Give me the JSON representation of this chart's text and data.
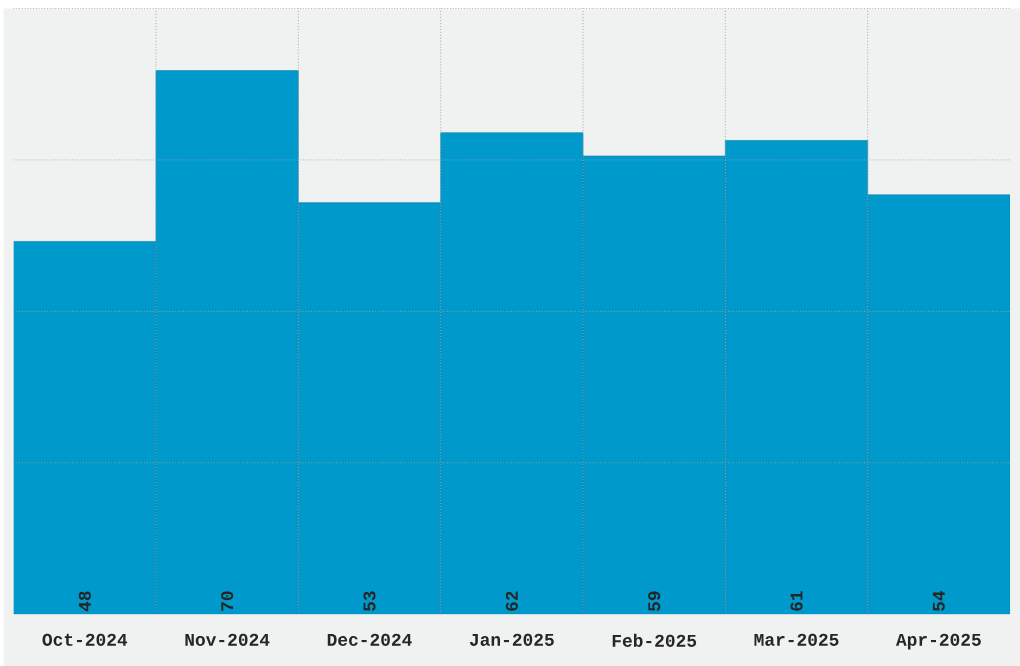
{
  "chart_data": {
    "type": "bar",
    "categories": [
      "Oct-2024",
      "Nov-2024",
      "Dec-2024",
      "Jan-2025",
      "Feb-2025",
      "Mar-2025",
      "Apr-2025"
    ],
    "values": [
      48,
      70,
      53,
      62,
      59,
      61,
      54
    ],
    "color": "#0099cc",
    "ylim": [
      0,
      78
    ],
    "yticks": [
      {
        "value": 19.5,
        "label": null
      },
      {
        "value": 39,
        "label": null
      },
      {
        "value": 58.5,
        "label": null
      },
      {
        "value": 78,
        "label": null
      }
    ],
    "grid": true,
    "data_labels": true
  }
}
